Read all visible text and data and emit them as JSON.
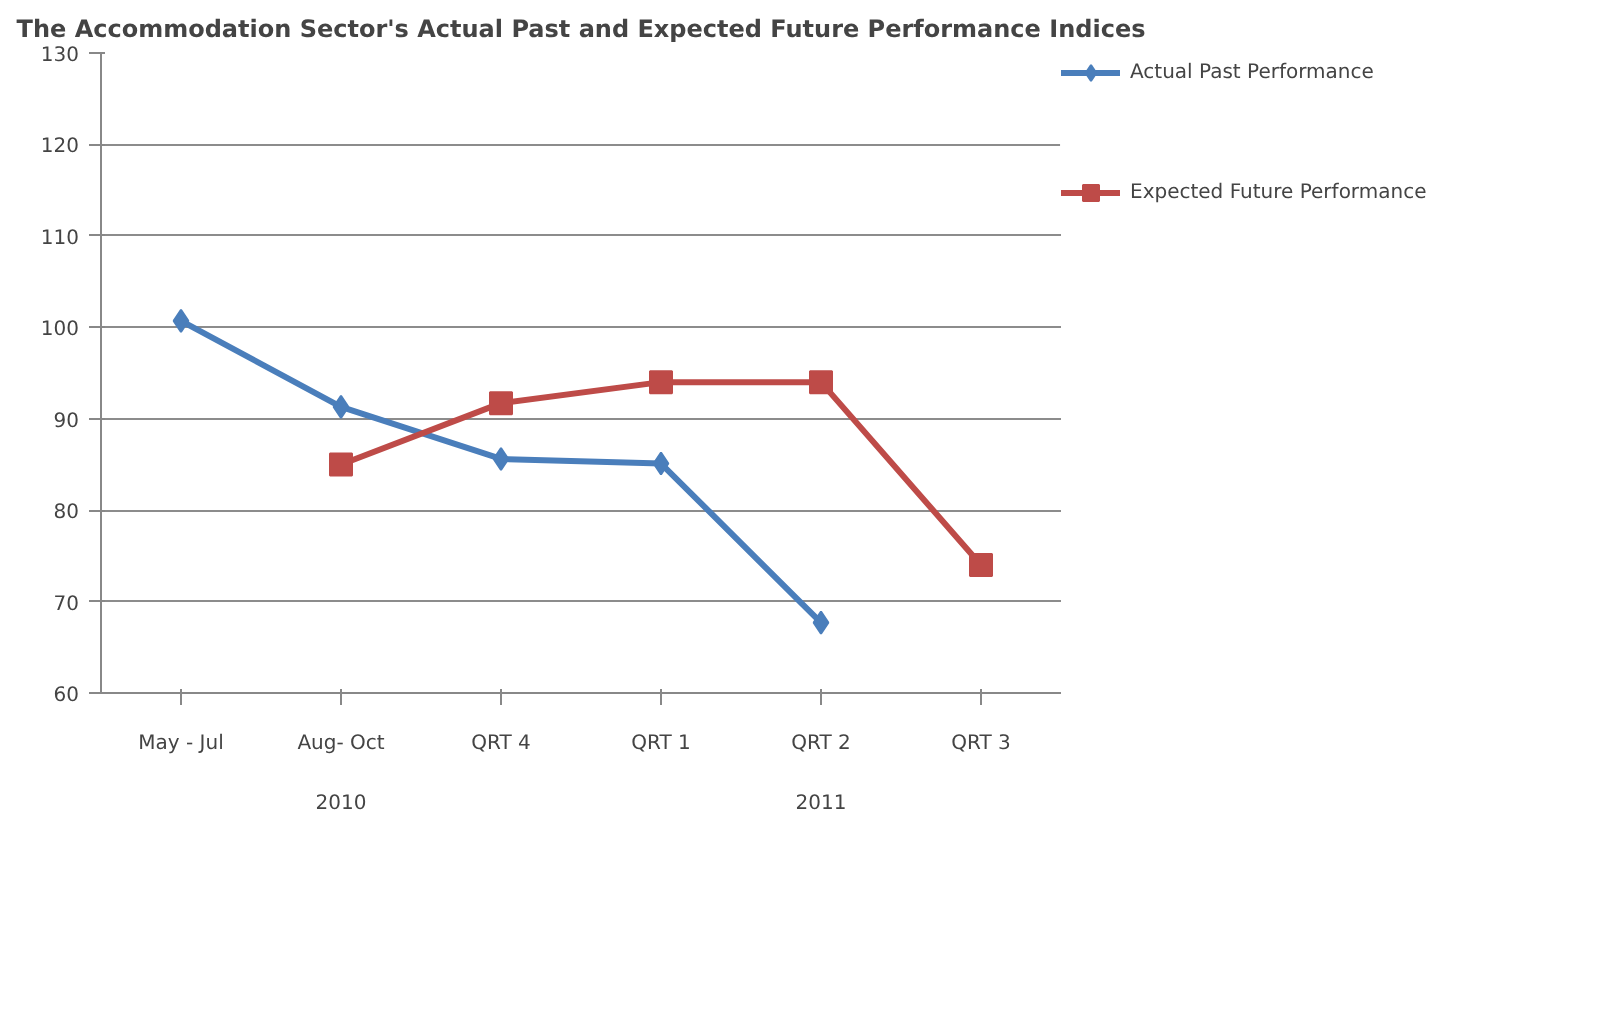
{
  "chart_data": {
    "type": "line",
    "title": "The Accommodation Sector's Actual Past and Expected Future Performance Indices",
    "categories": [
      "May - Jul",
      "Aug- Oct",
      "QRT 4",
      "QRT 1",
      "QRT 2",
      "QRT 3"
    ],
    "series": [
      {
        "name": "Actual Past Performance",
        "color": "#4a7ebb",
        "marker": "diamond",
        "values": [
          100.7,
          91.3,
          85.6,
          85.1,
          67.7,
          null
        ]
      },
      {
        "name": "Expected Future Performance",
        "color": "#be4b48",
        "marker": "square",
        "values": [
          null,
          85,
          91.7,
          94,
          94,
          74
        ]
      }
    ],
    "annotations": [
      "2010",
      "2011"
    ],
    "ylim": [
      60,
      130
    ],
    "yticks": [
      60,
      70,
      80,
      90,
      100,
      110,
      120,
      130
    ],
    "grid": "y",
    "legend": "right",
    "line_style": "solid"
  }
}
